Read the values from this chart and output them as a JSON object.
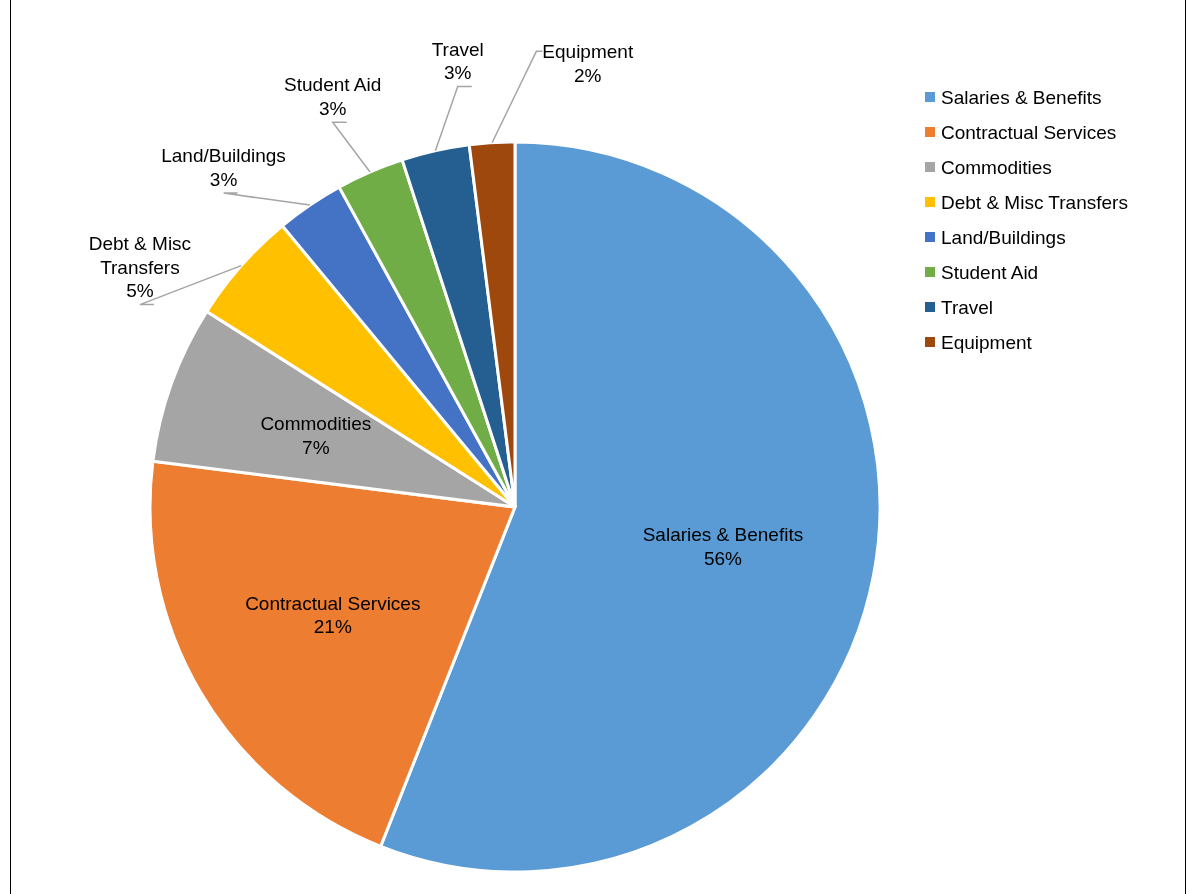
{
  "chart_data": {
    "type": "pie",
    "categories": [
      "Salaries & Benefits",
      "Contractual Services",
      "Commodities",
      "Debt & Misc Transfers",
      "Land/Buildings",
      "Student Aid",
      "Travel",
      "Equipment"
    ],
    "values": [
      56,
      21,
      7,
      5,
      3,
      3,
      3,
      2
    ],
    "colors": [
      "#5b9bd5",
      "#ed7d31",
      "#a5a5a5",
      "#ffc000",
      "#4472c4",
      "#70ad47",
      "#255e91",
      "#9e480e"
    ],
    "value_labels": [
      "56%",
      "21%",
      "7%",
      "5%",
      "3%",
      "3%",
      "3%",
      "2%"
    ],
    "legend": "top right"
  }
}
